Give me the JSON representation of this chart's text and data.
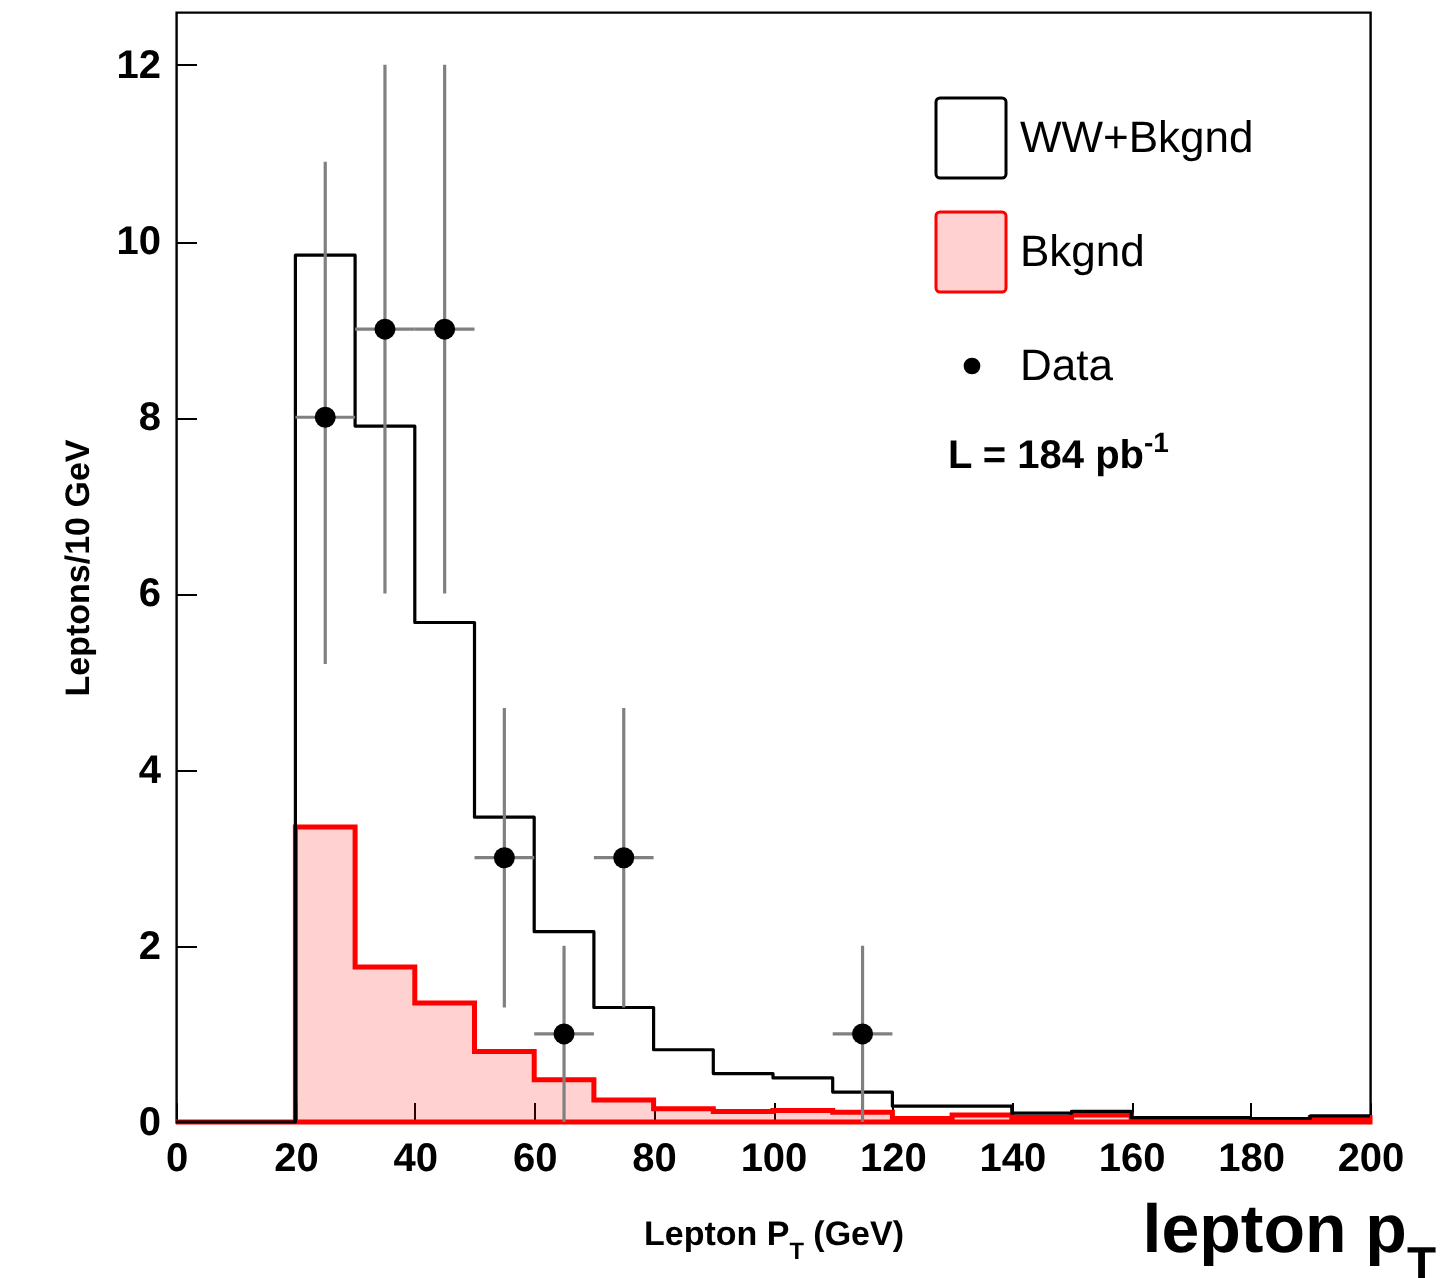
{
  "chart_data": {
    "type": "histogram",
    "xlabel": "Lepton P$_{T}$ (GeV)",
    "ylabel": "Leptons/10 GeV",
    "bins": [
      0,
      10,
      20,
      30,
      40,
      50,
      60,
      70,
      80,
      90,
      100,
      110,
      120,
      130,
      140,
      150,
      160,
      170,
      180,
      190,
      200
    ],
    "series": [
      {
        "name": "WW+Bkgnd",
        "type": "step",
        "color": "#000000",
        "x": [
          0,
          10,
          20,
          30,
          40,
          50,
          60,
          70,
          80,
          90,
          100,
          110,
          120,
          130,
          140,
          150,
          160,
          170,
          180,
          190,
          200
        ],
        "values": [
          0,
          0,
          9.84,
          7.9,
          5.67,
          3.46,
          2.16,
          1.3,
          0.82,
          0.55,
          0.5,
          0.34,
          0.18,
          0.18,
          0.1,
          0.12,
          0.05,
          0.05,
          0.04,
          0.07,
          0.07
        ]
      },
      {
        "name": "Bkgnd",
        "color": "#ff0000",
        "values": [
          0,
          0,
          3.35,
          1.76,
          1.35,
          0.8,
          0.48,
          0.25,
          0.15,
          0.12,
          0.13,
          0.11,
          0.04,
          0.08,
          0.05,
          0.08,
          0.02,
          0.02,
          0.02,
          0.05
        ]
      },
      {
        "name": "Data",
        "type": "scatter",
        "color": "#000000",
        "x": [
          25,
          35,
          45,
          55,
          65,
          75,
          115
        ],
        "values": [
          8,
          9,
          9,
          3,
          1,
          3,
          1
        ],
        "errors": [
          [
            5.2,
            10.9
          ],
          [
            6,
            12
          ],
          [
            6,
            12
          ],
          [
            1.3,
            4.7
          ],
          [
            0,
            2
          ],
          [
            1.3,
            4.7
          ],
          [
            0,
            2
          ]
        ],
        "xerrors": [
          5,
          5,
          5,
          5,
          5,
          5,
          5
        ]
      }
    ],
    "xlim": [
      0,
      200
    ],
    "xticks": [
      0,
      20,
      40,
      60,
      80,
      100,
      120,
      140,
      160,
      180,
      200
    ],
    "ylim": [
      0,
      12.6
    ],
    "yticks": [
      0,
      2,
      4,
      6,
      8,
      10,
      12
    ],
    "legend": "top right",
    "annotations": [
      "L = 184 pb$^{-1}$",
      "lepton p$_{T}$"
    ]
  }
}
